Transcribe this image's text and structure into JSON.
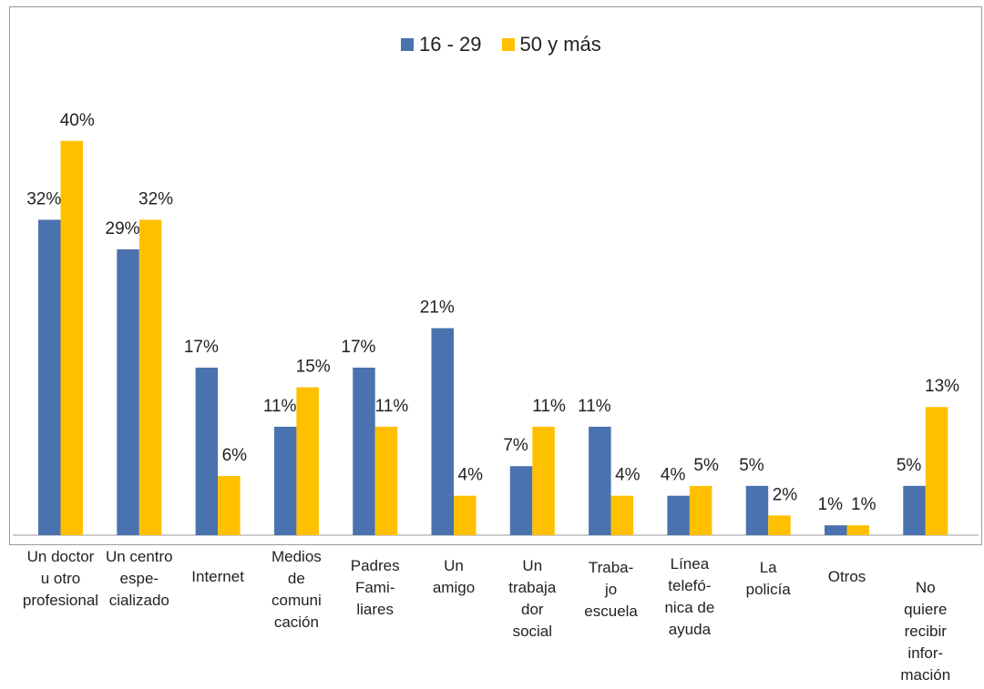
{
  "chart_data": {
    "type": "bar",
    "categories": [
      "Un doctor\nu otro\nprofesional",
      "Un centro\nespe-\ncializado",
      "Internet",
      "Medios\nde\ncomuni\ncación",
      "Padres\nFami-\nliares",
      "Un\namigo",
      "Un\ntrabaja\ndor\nsocial",
      "Traba-\njo\nescuela",
      "Línea\ntelefó-\nnica de\nayuda",
      "La\npolicía",
      "Otros",
      "No\nquiere\nrecibir\ninfor-\nmación"
    ],
    "series": [
      {
        "name": "16 - 29",
        "color": "#4a72ae",
        "values": [
          32,
          29,
          17,
          11,
          17,
          21,
          7,
          11,
          4,
          5,
          1,
          5
        ],
        "labels": [
          "32%",
          "29%",
          "17%",
          "11%",
          "17%",
          "21%",
          "7%",
          "11%",
          "4%",
          "5%",
          "1%",
          "5%"
        ]
      },
      {
        "name": "50 y más",
        "color": "#ffc000",
        "values": [
          40,
          32,
          6,
          15,
          11,
          4,
          11,
          4,
          5,
          2,
          1,
          13
        ],
        "labels": [
          "40%",
          "32%",
          "6%",
          "15%",
          "11%",
          "4%",
          "11%",
          "4%",
          "5%",
          "2%",
          "1%",
          "13%"
        ]
      }
    ],
    "ylim": [
      0,
      45
    ],
    "legend_position": "top-center",
    "grid": false
  }
}
